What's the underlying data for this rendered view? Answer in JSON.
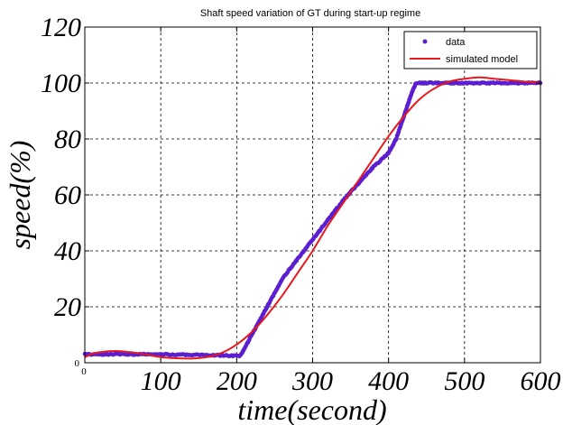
{
  "chart_data": {
    "type": "line",
    "title": "Shaft speed variation of GT during start-up regime",
    "xlabel": "time(second)",
    "ylabel": "speed(%)",
    "xlim": [
      0,
      600
    ],
    "ylim": [
      0,
      120
    ],
    "x_ticks": [
      "0",
      "100",
      "200",
      "300",
      "400",
      "500",
      "600"
    ],
    "y_ticks": [
      "0",
      "20",
      "40",
      "60",
      "80",
      "100",
      "120"
    ],
    "grid": true,
    "legend_position": "top-right",
    "colors": {
      "data": "#5b1fd0",
      "simulated model": "#e8191c"
    },
    "series": [
      {
        "name": "data",
        "style": "markers",
        "x": [
          0,
          50,
          100,
          150,
          195,
          205,
          220,
          240,
          260,
          280,
          300,
          320,
          340,
          360,
          380,
          400,
          410,
          420,
          430,
          436,
          450,
          500,
          550,
          600
        ],
        "y": [
          3,
          3,
          3,
          2.8,
          2.5,
          2.5,
          10,
          20,
          30,
          37,
          44,
          51,
          58,
          64,
          70,
          75,
          80,
          88,
          96,
          100,
          100,
          100,
          100,
          100
        ]
      },
      {
        "name": "simulated model",
        "style": "line",
        "x": [
          0,
          10,
          20,
          40,
          60,
          80,
          100,
          120,
          140,
          160,
          180,
          200,
          220,
          240,
          260,
          280,
          300,
          320,
          340,
          360,
          380,
          400,
          420,
          440,
          460,
          480,
          500,
          520,
          540,
          560,
          580,
          600
        ],
        "y": [
          2,
          3.2,
          3.8,
          4.2,
          3.8,
          3,
          2,
          1.6,
          1.5,
          2,
          3.5,
          6.5,
          11,
          17,
          24,
          32,
          40,
          49,
          57,
          65,
          73,
          81,
          88,
          94,
          98,
          100.5,
          101.5,
          102,
          101.5,
          101,
          100.5,
          100
        ]
      }
    ]
  }
}
